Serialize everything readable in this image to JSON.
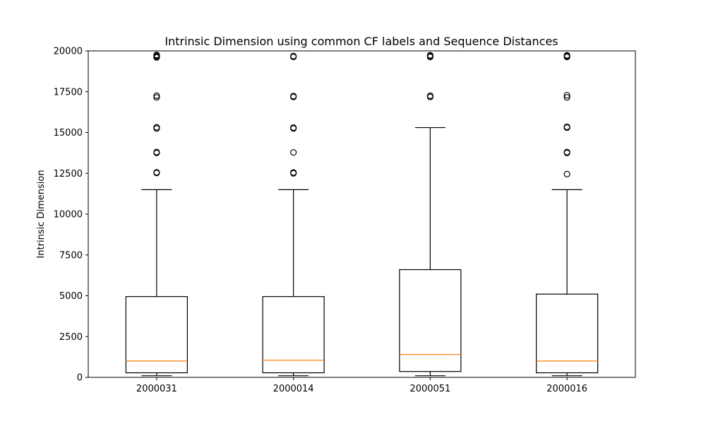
{
  "chart_data": {
    "type": "box",
    "title": "Intrinsic Dimension using common CF labels and Sequence Distances",
    "xlabel": "",
    "ylabel": "Intrinsic Dimension",
    "ylim": [
      0,
      20000
    ],
    "yticks": [
      0,
      2500,
      5000,
      7500,
      10000,
      12500,
      15000,
      17500,
      20000
    ],
    "grid": false,
    "categories": [
      "2000031",
      "2000014",
      "2000051",
      "2000016"
    ],
    "boxes": [
      {
        "category": "2000031",
        "whisker_low": 100,
        "q1": 280,
        "median": 1000,
        "q3": 4950,
        "whisker_high": 11500,
        "outliers": [
          12520,
          12560,
          13750,
          13800,
          15250,
          15320,
          17150,
          17250,
          19600,
          19650,
          19700,
          19750
        ]
      },
      {
        "category": "2000014",
        "whisker_low": 100,
        "q1": 280,
        "median": 1050,
        "q3": 4950,
        "whisker_high": 11500,
        "outliers": [
          12500,
          12550,
          13780,
          15250,
          15300,
          17180,
          17230,
          19630,
          19680
        ]
      },
      {
        "category": "2000051",
        "whisker_low": 100,
        "q1": 360,
        "median": 1400,
        "q3": 6600,
        "whisker_high": 15300,
        "outliers": [
          17180,
          17250,
          19630,
          19680,
          19730
        ]
      },
      {
        "category": "2000016",
        "whisker_low": 100,
        "q1": 280,
        "median": 1000,
        "q3": 5100,
        "whisker_high": 11500,
        "outliers": [
          12450,
          13750,
          13800,
          15300,
          15350,
          17150,
          17280,
          19630,
          19680,
          19730
        ]
      }
    ],
    "colors": {
      "box": "#000000",
      "median": "#ff7f0e",
      "whisker": "#000000",
      "outlier": "#000000"
    }
  }
}
